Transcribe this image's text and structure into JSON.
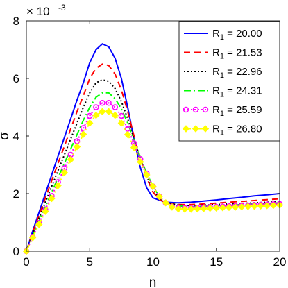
{
  "chart_data": {
    "type": "line",
    "title": "",
    "xlabel": "n",
    "ylabel": "σ",
    "y_multiplier": {
      "base": "× 10",
      "exponent": "-3"
    },
    "xlim": [
      0,
      20
    ],
    "ylim": [
      0,
      8
    ],
    "x_ticks": [
      "0",
      "5",
      "10",
      "15",
      "20"
    ],
    "y_ticks": [
      "0",
      "2",
      "4",
      "6",
      "8"
    ],
    "grid": false,
    "legend_position": "top-right",
    "series": [
      {
        "name": "R1 = 20.00",
        "label_main": "R",
        "label_sub": "1",
        "label_value": " = 20.00",
        "color": "#0000ff",
        "style": "solid",
        "marker": "none",
        "x": [
          0,
          0.5,
          1,
          1.5,
          2,
          2.5,
          3,
          3.5,
          4,
          4.5,
          5,
          5.5,
          6,
          6.5,
          7,
          7.5,
          8,
          8.5,
          9,
          9.5,
          10,
          11,
          12,
          13,
          14,
          15,
          16,
          17,
          18,
          19,
          20
        ],
        "y": [
          0,
          0.7,
          1.35,
          2.0,
          2.65,
          3.3,
          3.95,
          4.6,
          5.25,
          5.85,
          6.55,
          7.0,
          7.2,
          7.1,
          6.7,
          6.0,
          5.0,
          3.9,
          2.9,
          2.2,
          1.85,
          1.7,
          1.68,
          1.7,
          1.74,
          1.78,
          1.83,
          1.87,
          1.92,
          1.96,
          2.0
        ]
      },
      {
        "name": "R1 = 21.53",
        "label_main": "R",
        "label_sub": "1",
        "label_value": " = 21.53",
        "color": "#ff0000",
        "style": "dashed",
        "marker": "none",
        "x": [
          0,
          0.5,
          1,
          1.5,
          2,
          2.5,
          3,
          3.5,
          4,
          4.5,
          5,
          5.5,
          6,
          6.5,
          7,
          7.5,
          8,
          8.5,
          9,
          9.5,
          10,
          10.5,
          11,
          12,
          13,
          14,
          15,
          16,
          17,
          18,
          19,
          20
        ],
        "y": [
          0,
          0.65,
          1.25,
          1.85,
          2.45,
          3.05,
          3.65,
          4.25,
          4.85,
          5.4,
          6.0,
          6.35,
          6.5,
          6.45,
          6.15,
          5.6,
          4.85,
          4.0,
          3.2,
          2.55,
          2.05,
          1.8,
          1.68,
          1.62,
          1.62,
          1.64,
          1.67,
          1.7,
          1.73,
          1.76,
          1.79,
          1.82
        ]
      },
      {
        "name": "R1 = 22.96",
        "label_main": "R",
        "label_sub": "1",
        "label_value": " = 22.96",
        "color": "#000000",
        "style": "dotted",
        "marker": "none",
        "x": [
          0,
          0.5,
          1,
          1.5,
          2,
          2.5,
          3,
          3.5,
          4,
          4.5,
          5,
          5.5,
          6,
          6.5,
          7,
          7.5,
          8,
          8.5,
          9,
          9.5,
          10,
          10.5,
          11,
          12,
          13,
          14,
          15,
          16,
          17,
          18,
          19,
          20
        ],
        "y": [
          0,
          0.6,
          1.15,
          1.7,
          2.25,
          2.8,
          3.35,
          3.9,
          4.45,
          5.0,
          5.5,
          5.85,
          5.95,
          5.9,
          5.65,
          5.2,
          4.6,
          3.9,
          3.2,
          2.6,
          2.15,
          1.85,
          1.7,
          1.6,
          1.58,
          1.6,
          1.62,
          1.64,
          1.66,
          1.68,
          1.7,
          1.72
        ]
      },
      {
        "name": "R1 = 24.31",
        "label_main": "R",
        "label_sub": "1",
        "label_value": " = 24.31",
        "color": "#00ff00",
        "style": "dashdot",
        "marker": "none",
        "x": [
          0,
          0.5,
          1,
          1.5,
          2,
          2.5,
          3,
          3.5,
          4,
          4.5,
          5,
          5.5,
          6,
          6.5,
          7,
          7.5,
          8,
          8.5,
          9,
          9.5,
          10,
          10.5,
          11,
          12,
          13,
          14,
          15,
          16,
          17,
          18,
          19,
          20
        ],
        "y": [
          0,
          0.55,
          1.05,
          1.55,
          2.05,
          2.55,
          3.05,
          3.55,
          4.05,
          4.55,
          5.0,
          5.35,
          5.5,
          5.5,
          5.3,
          4.95,
          4.45,
          3.85,
          3.25,
          2.7,
          2.25,
          1.9,
          1.7,
          1.57,
          1.55,
          1.56,
          1.58,
          1.6,
          1.62,
          1.64,
          1.66,
          1.68
        ]
      },
      {
        "name": "R1 = 25.59",
        "label_main": "R",
        "label_sub": "1",
        "label_value": " = 25.59",
        "color": "#ff00ff",
        "style": "dotted",
        "marker": "circle",
        "x": [
          0,
          0.5,
          1,
          1.5,
          2,
          2.5,
          3,
          3.5,
          4,
          4.5,
          5,
          5.5,
          6,
          6.5,
          7,
          7.5,
          8,
          8.5,
          9,
          9.5,
          10,
          10.5,
          11,
          11.5,
          12,
          12.5,
          13,
          13.5,
          14,
          14.5,
          15,
          15.5,
          16,
          16.5,
          17,
          17.5,
          18,
          18.5,
          19,
          19.5,
          20
        ],
        "y": [
          0,
          0.5,
          0.98,
          1.45,
          1.92,
          2.4,
          2.88,
          3.35,
          3.82,
          4.28,
          4.7,
          5.0,
          5.15,
          5.15,
          5.0,
          4.7,
          4.25,
          3.75,
          3.2,
          2.7,
          2.25,
          1.9,
          1.68,
          1.55,
          1.5,
          1.5,
          1.5,
          1.51,
          1.52,
          1.53,
          1.54,
          1.55,
          1.56,
          1.57,
          1.58,
          1.59,
          1.6,
          1.61,
          1.62,
          1.63,
          1.64
        ]
      },
      {
        "name": "R1 = 26.80",
        "label_main": "R",
        "label_sub": "1",
        "label_value": " = 26.80",
        "color": "#ffff00",
        "style": "dashdot",
        "marker": "diamond",
        "x": [
          0,
          0.5,
          1,
          1.5,
          2,
          2.5,
          3,
          3.5,
          4,
          4.5,
          5,
          5.5,
          6,
          6.5,
          7,
          7.5,
          8,
          8.5,
          9,
          9.5,
          10,
          10.5,
          11,
          11.5,
          12,
          12.5,
          13,
          13.5,
          14,
          14.5,
          15,
          15.5,
          16,
          16.5,
          17,
          17.5,
          18,
          18.5,
          19,
          19.5,
          20
        ],
        "y": [
          0,
          0.47,
          0.93,
          1.38,
          1.83,
          2.28,
          2.73,
          3.18,
          3.63,
          4.06,
          4.45,
          4.72,
          4.85,
          4.85,
          4.72,
          4.45,
          4.05,
          3.6,
          3.1,
          2.65,
          2.25,
          1.9,
          1.68,
          1.53,
          1.47,
          1.46,
          1.46,
          1.47,
          1.48,
          1.49,
          1.5,
          1.51,
          1.52,
          1.53,
          1.54,
          1.55,
          1.56,
          1.57,
          1.58,
          1.59,
          1.6
        ]
      }
    ]
  }
}
